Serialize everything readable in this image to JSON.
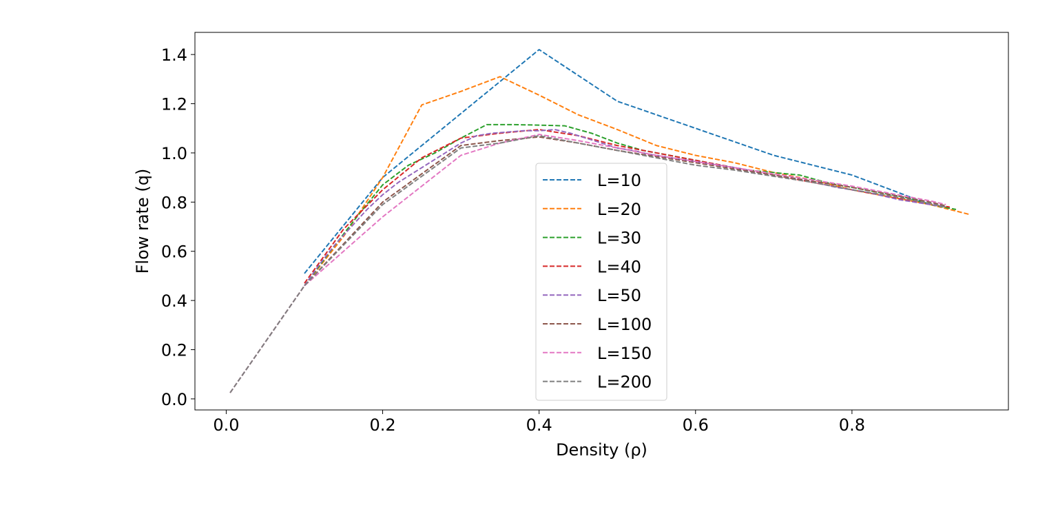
{
  "chart_data": {
    "type": "line",
    "xlabel": "Density (ρ)",
    "ylabel": "Flow rate (q)",
    "xlim": [
      -0.04,
      1.0
    ],
    "ylim": [
      -0.045,
      1.49
    ],
    "xticks": [
      0.0,
      0.2,
      0.4,
      0.6,
      0.8
    ],
    "xtick_labels": [
      "0.0",
      "0.2",
      "0.4",
      "0.6",
      "0.8"
    ],
    "yticks": [
      0.0,
      0.2,
      0.4,
      0.6,
      0.8,
      1.0,
      1.2,
      1.4
    ],
    "ytick_labels": [
      "0.0",
      "0.2",
      "0.4",
      "0.6",
      "0.8",
      "1.0",
      "1.2",
      "1.4"
    ],
    "grid": false,
    "line_style": "dashed",
    "legend_position": "center",
    "series": [
      {
        "name": "L=10",
        "color": "#1f77b4",
        "x": [
          0.1,
          0.2,
          0.3,
          0.4,
          0.5,
          0.6,
          0.7,
          0.8,
          0.9
        ],
        "y": [
          0.51,
          0.9,
          1.16,
          1.42,
          1.21,
          1.1,
          0.99,
          0.91,
          0.79
        ]
      },
      {
        "name": "L=20",
        "color": "#ff7f0e",
        "x": [
          0.1,
          0.15,
          0.2,
          0.25,
          0.3,
          0.35,
          0.4,
          0.45,
          0.5,
          0.55,
          0.6,
          0.65,
          0.7,
          0.75,
          0.8,
          0.85,
          0.9,
          0.95
        ],
        "y": [
          0.46,
          0.66,
          0.9,
          1.195,
          1.25,
          1.31,
          1.235,
          1.155,
          1.095,
          1.03,
          0.99,
          0.96,
          0.92,
          0.89,
          0.85,
          0.82,
          0.79,
          0.75
        ]
      },
      {
        "name": "L=30",
        "color": "#2ca02c",
        "x": [
          0.1,
          0.133,
          0.167,
          0.2,
          0.233,
          0.267,
          0.3,
          0.333,
          0.367,
          0.4,
          0.433,
          0.467,
          0.5,
          0.533,
          0.567,
          0.6,
          0.633,
          0.667,
          0.7,
          0.733,
          0.767,
          0.8,
          0.833,
          0.867,
          0.9,
          0.933
        ],
        "y": [
          0.46,
          0.6,
          0.74,
          0.87,
          0.95,
          1.0,
          1.06,
          1.115,
          1.115,
          1.113,
          1.11,
          1.08,
          1.04,
          1.01,
          0.99,
          0.97,
          0.95,
          0.93,
          0.92,
          0.91,
          0.88,
          0.86,
          0.84,
          0.82,
          0.79,
          0.77
        ]
      },
      {
        "name": "L=40",
        "color": "#d62728",
        "x": [
          0.1,
          0.15,
          0.2,
          0.25,
          0.3,
          0.35,
          0.4,
          0.45,
          0.5,
          0.55,
          0.6,
          0.65,
          0.7,
          0.75,
          0.8,
          0.85,
          0.9,
          0.925
        ],
        "y": [
          0.47,
          0.69,
          0.85,
          0.98,
          1.06,
          1.08,
          1.095,
          1.07,
          1.03,
          1.0,
          0.97,
          0.94,
          0.91,
          0.88,
          0.85,
          0.82,
          0.79,
          0.78
        ]
      },
      {
        "name": "L=50",
        "color": "#9467bd",
        "x": [
          0.1,
          0.12,
          0.14,
          0.16,
          0.18,
          0.2,
          0.22,
          0.24,
          0.26,
          0.28,
          0.3,
          0.32,
          0.34,
          0.36,
          0.38,
          0.4,
          0.42,
          0.44,
          0.46,
          0.48,
          0.5,
          0.52,
          0.54,
          0.56,
          0.58,
          0.6,
          0.62,
          0.64,
          0.66,
          0.68,
          0.7,
          0.72,
          0.74,
          0.76,
          0.78,
          0.8,
          0.82,
          0.84,
          0.86,
          0.88,
          0.9,
          0.92
        ],
        "y": [
          0.46,
          0.55,
          0.63,
          0.7,
          0.77,
          0.83,
          0.88,
          0.92,
          0.96,
          1.0,
          1.04,
          1.07,
          1.08,
          1.085,
          1.09,
          1.09,
          1.095,
          1.08,
          1.06,
          1.04,
          1.02,
          1.01,
          0.995,
          0.985,
          0.975,
          0.965,
          0.955,
          0.945,
          0.935,
          0.92,
          0.91,
          0.9,
          0.89,
          0.875,
          0.86,
          0.85,
          0.84,
          0.825,
          0.81,
          0.8,
          0.79,
          0.78
        ]
      },
      {
        "name": "L=100",
        "color": "#8c564b",
        "x": [
          0.005,
          0.1,
          0.2,
          0.3,
          0.35,
          0.4,
          0.45,
          0.5,
          0.55,
          0.6,
          0.65,
          0.7,
          0.75,
          0.8,
          0.85,
          0.9,
          0.92
        ],
        "y": [
          0.025,
          0.46,
          0.8,
          1.03,
          1.05,
          1.065,
          1.04,
          1.01,
          0.985,
          0.96,
          0.935,
          0.91,
          0.885,
          0.86,
          0.83,
          0.8,
          0.785
        ]
      },
      {
        "name": "L=150",
        "color": "#e377c2",
        "x": [
          0.005,
          0.1,
          0.2,
          0.3,
          0.35,
          0.4,
          0.45,
          0.5,
          0.55,
          0.6,
          0.65,
          0.7,
          0.75,
          0.8,
          0.85,
          0.9,
          0.92
        ],
        "y": [
          0.025,
          0.46,
          0.74,
          0.99,
          1.04,
          1.075,
          1.05,
          1.02,
          0.99,
          0.965,
          0.94,
          0.915,
          0.89,
          0.865,
          0.835,
          0.805,
          0.79
        ]
      },
      {
        "name": "L=200",
        "color": "#7f7f7f",
        "x": [
          0.005,
          0.1,
          0.2,
          0.3,
          0.35,
          0.4,
          0.45,
          0.5,
          0.55,
          0.6,
          0.65,
          0.7,
          0.75,
          0.8,
          0.85,
          0.9,
          0.92
        ],
        "y": [
          0.025,
          0.46,
          0.79,
          1.02,
          1.04,
          1.07,
          1.04,
          1.01,
          0.98,
          0.95,
          0.93,
          0.905,
          0.88,
          0.85,
          0.825,
          0.795,
          0.78
        ]
      }
    ]
  }
}
